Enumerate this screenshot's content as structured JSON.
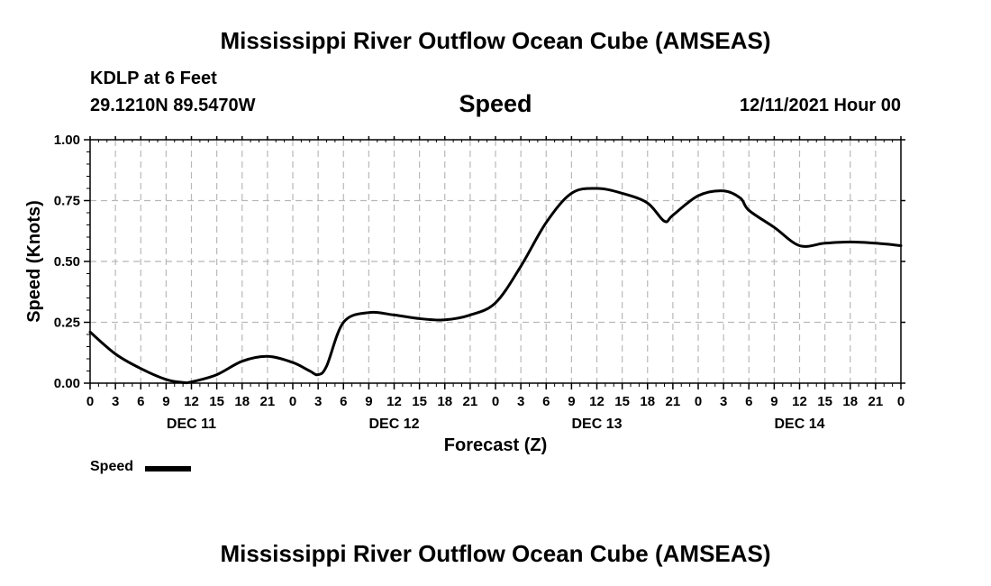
{
  "header": {
    "title": "Mississippi River Outflow Ocean Cube (AMSEAS)",
    "station": "KDLP at 6 Feet",
    "coords": "29.1210N  89.5470W",
    "parameter": "Speed",
    "datetime": "12/11/2021 Hour 00"
  },
  "footer": {
    "title": "Mississippi River Outflow Ocean Cube (AMSEAS)"
  },
  "legend": {
    "label": "Speed"
  },
  "colors": {
    "line": "#000000",
    "grid": "#b8b8b8",
    "background": "#ffffff"
  },
  "chart_data": {
    "type": "line",
    "title": "Speed",
    "xlabel": "Forecast (Z)",
    "ylabel": "Speed (Knots)",
    "ylim": [
      0,
      1
    ],
    "xlim": [
      0,
      96
    ],
    "yticks": [
      "0.00",
      "0.25",
      "0.50",
      "0.75",
      "1.00"
    ],
    "xticks": [
      "0",
      "3",
      "6",
      "9",
      "12",
      "15",
      "18",
      "21",
      "0",
      "3",
      "6",
      "9",
      "12",
      "15",
      "18",
      "21",
      "0",
      "3",
      "6",
      "9",
      "12",
      "15",
      "18",
      "21",
      "0",
      "3",
      "6",
      "9",
      "12",
      "15",
      "18",
      "21",
      "0"
    ],
    "days": [
      "DEC 11",
      "DEC 12",
      "DEC 13",
      "DEC 14"
    ],
    "grid": true,
    "series": [
      {
        "name": "Speed",
        "x": [
          0,
          3,
          6,
          9,
          11,
          12,
          15,
          18,
          21,
          24,
          26,
          27,
          28,
          30,
          33,
          36,
          39,
          42,
          45,
          48,
          51,
          54,
          57,
          60,
          63,
          66,
          68,
          69,
          72,
          75,
          77,
          78,
          81,
          84,
          87,
          90,
          93,
          96
        ],
        "values": [
          0.21,
          0.12,
          0.06,
          0.015,
          0.003,
          0.005,
          0.035,
          0.09,
          0.11,
          0.085,
          0.05,
          0.035,
          0.07,
          0.25,
          0.29,
          0.28,
          0.265,
          0.26,
          0.28,
          0.33,
          0.48,
          0.66,
          0.78,
          0.8,
          0.78,
          0.74,
          0.665,
          0.69,
          0.77,
          0.79,
          0.76,
          0.71,
          0.64,
          0.565,
          0.575,
          0.58,
          0.575,
          0.565
        ]
      }
    ]
  }
}
